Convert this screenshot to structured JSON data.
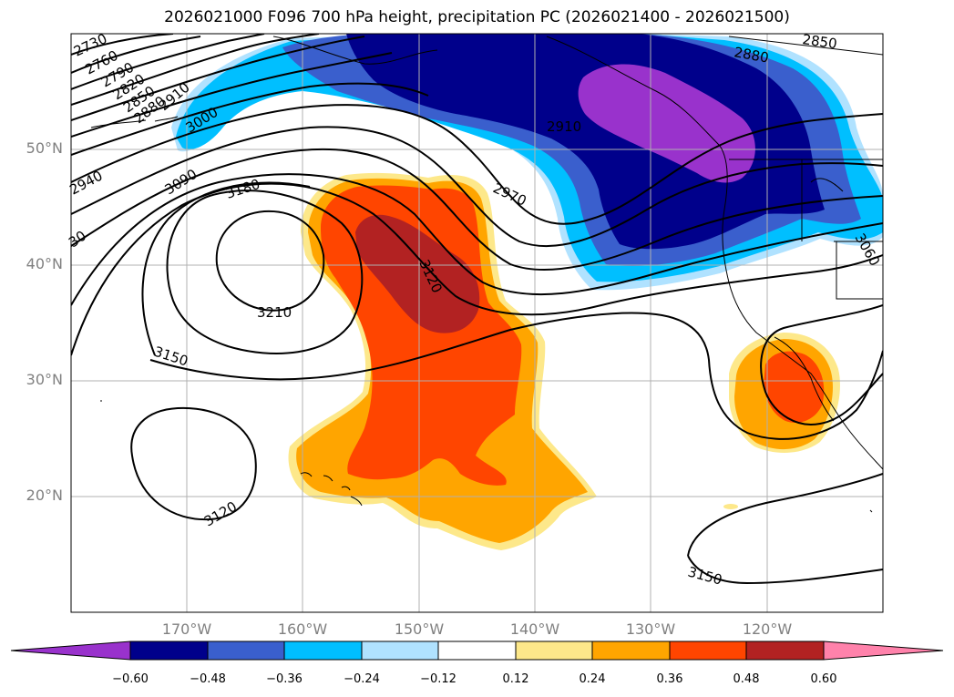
{
  "title": "2026021000 F096 700 hPa height, precipitation PC (2026021400 - 2026021500)",
  "lat_labels": [
    "50°N",
    "40°N",
    "30°N",
    "20°N"
  ],
  "lat_values": [
    50,
    40,
    30,
    20
  ],
  "lon_labels": [
    "170°W",
    "160°W",
    "150°W",
    "140°W",
    "130°W",
    "120°W"
  ],
  "lon_values": [
    -170,
    -160,
    -150,
    -140,
    -130,
    -120
  ],
  "map_extent": {
    "lon": [
      -180,
      -110
    ],
    "lat": [
      10,
      60
    ]
  },
  "contour_labels": [
    "2730",
    "2760",
    "2790",
    "2820",
    "2850",
    "2880",
    "2910",
    "2940",
    "3000",
    "3090",
    "3180",
    "3210",
    "3150",
    "3120",
    "2970",
    "3120",
    "2910",
    "2880",
    "2850",
    "3060",
    "3150",
    "30"
  ],
  "colorbar": {
    "ticks": [
      "−0.60",
      "−0.48",
      "−0.36",
      "−0.24",
      "−0.12",
      "0.12",
      "0.24",
      "0.36",
      "0.48",
      "0.60"
    ],
    "colors": [
      "#9932cc",
      "#00008b",
      "#3a5fcd",
      "#00bfff",
      "#b0e2ff",
      "#ffffff",
      "#fde88a",
      "#ffa500",
      "#ff4500",
      "#b22222",
      "#ff82ab"
    ]
  },
  "colors": {
    "purple": "#9932cc",
    "navy": "#00008b",
    "blue": "#3a5fcd",
    "sky": "#00bfff",
    "lightsky": "#b0e2ff",
    "pale": "#fde88a",
    "orange": "#ffa500",
    "red": "#ff4500",
    "darkred": "#b22222",
    "grid": "#b0b0b0"
  }
}
